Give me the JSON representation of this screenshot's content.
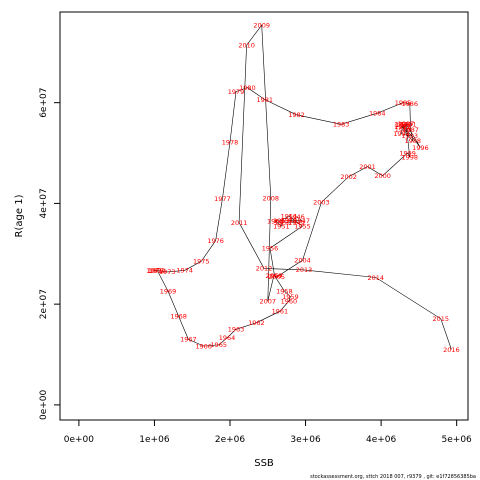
{
  "chart_data": {
    "type": "line",
    "title": "",
    "xlabel": "SSB",
    "ylabel": "R(age 1)",
    "xlim": [
      -250000,
      5150000
    ],
    "ylim": [
      -3000000,
      78000000
    ],
    "xticks": [
      0,
      1000000,
      2000000,
      3000000,
      4000000,
      5000000
    ],
    "xtick_labels": [
      "0e+00",
      "1e+06",
      "2e+06",
      "3e+06",
      "4e+06",
      "5e+06"
    ],
    "yticks": [
      0,
      20000000,
      40000000,
      60000000
    ],
    "ytick_labels": [
      "0e+00",
      "2e+07",
      "4e+07",
      "6e+07"
    ],
    "grid": false,
    "line_color": "#000000",
    "label_color": "#ff0000",
    "footer": "stockassessment.org, sttch  2018  007, r9379 , git: e1f72856385ba",
    "series": [
      {
        "points": [
          {
            "year": "1946",
            "x": 2880000,
            "y": 37400000
          },
          {
            "year": "1947",
            "x": 2950000,
            "y": 36600000
          },
          {
            "year": "1948",
            "x": 2780000,
            "y": 36700000
          },
          {
            "year": "1949",
            "x": 2880000,
            "y": 36200000
          },
          {
            "year": "1950",
            "x": 2700000,
            "y": 36300000
          },
          {
            "year": "1951",
            "x": 2680000,
            "y": 35500000
          },
          {
            "year": "1952",
            "x": 2600000,
            "y": 36500000
          },
          {
            "year": "1953",
            "x": 2680000,
            "y": 36600000
          },
          {
            "year": "1954",
            "x": 2780000,
            "y": 37500000
          },
          {
            "year": "1955",
            "x": 2960000,
            "y": 35500000
          },
          {
            "year": "1956",
            "x": 2530000,
            "y": 31100000
          },
          {
            "year": "1957",
            "x": 2590000,
            "y": 25600000
          },
          {
            "year": "1958",
            "x": 2720000,
            "y": 22600000
          },
          {
            "year": "1959",
            "x": 2800000,
            "y": 21500000
          },
          {
            "year": "1960",
            "x": 2780000,
            "y": 20600000
          },
          {
            "year": "1961",
            "x": 2660000,
            "y": 18600000
          },
          {
            "year": "1962",
            "x": 2350000,
            "y": 16300000
          },
          {
            "year": "1963",
            "x": 2080000,
            "y": 15000000
          },
          {
            "year": "1964",
            "x": 1960000,
            "y": 13300000
          },
          {
            "year": "1965",
            "x": 1850000,
            "y": 11900000
          },
          {
            "year": "1966",
            "x": 1650000,
            "y": 11700000
          },
          {
            "year": "1967",
            "x": 1450000,
            "y": 13000000
          },
          {
            "year": "1968",
            "x": 1320000,
            "y": 17600000
          },
          {
            "year": "1969",
            "x": 1180000,
            "y": 22600000
          },
          {
            "year": "1970",
            "x": 1040000,
            "y": 26600000
          },
          {
            "year": "1971",
            "x": 1000000,
            "y": 26600000
          },
          {
            "year": "1972",
            "x": 1020000,
            "y": 26700000
          },
          {
            "year": "1973",
            "x": 1170000,
            "y": 26400000
          },
          {
            "year": "1974",
            "x": 1400000,
            "y": 26700000
          },
          {
            "year": "1975",
            "x": 1620000,
            "y": 28500000
          },
          {
            "year": "1976",
            "x": 1810000,
            "y": 32600000
          },
          {
            "year": "1977",
            "x": 1900000,
            "y": 40900000
          },
          {
            "year": "1978",
            "x": 2000000,
            "y": 52200000
          },
          {
            "year": "1979",
            "x": 2080000,
            "y": 62200000
          },
          {
            "year": "1980",
            "x": 2230000,
            "y": 63000000
          },
          {
            "year": "1981",
            "x": 2460000,
            "y": 60600000
          },
          {
            "year": "1982",
            "x": 2880000,
            "y": 57600000
          },
          {
            "year": "1983",
            "x": 3470000,
            "y": 55700000
          },
          {
            "year": "1984",
            "x": 3950000,
            "y": 57900000
          },
          {
            "year": "1985",
            "x": 4290000,
            "y": 60000000
          },
          {
            "year": "1986",
            "x": 4380000,
            "y": 59800000
          },
          {
            "year": "1987",
            "x": 4390000,
            "y": 54600000
          },
          {
            "year": "1988",
            "x": 4420000,
            "y": 52400000
          },
          {
            "year": "1989",
            "x": 4290000,
            "y": 54600000
          },
          {
            "year": "1990",
            "x": 4300000,
            "y": 55600000
          },
          {
            "year": "1991",
            "x": 4360000,
            "y": 55700000
          },
          {
            "year": "1992",
            "x": 4280000,
            "y": 55200000
          },
          {
            "year": "1993",
            "x": 4380000,
            "y": 53400000
          },
          {
            "year": "1994",
            "x": 4270000,
            "y": 53800000
          },
          {
            "year": "1995",
            "x": 4280000,
            "y": 55700000
          },
          {
            "year": "1996",
            "x": 4520000,
            "y": 51100000
          },
          {
            "year": "1997",
            "x": 4330000,
            "y": 55800000
          },
          {
            "year": "1998",
            "x": 4380000,
            "y": 49200000
          },
          {
            "year": "1999",
            "x": 4350000,
            "y": 50000000
          },
          {
            "year": "2000",
            "x": 4020000,
            "y": 45500000
          },
          {
            "year": "2001",
            "x": 3820000,
            "y": 47300000
          },
          {
            "year": "2002",
            "x": 3570000,
            "y": 45300000
          },
          {
            "year": "2003",
            "x": 3210000,
            "y": 40200000
          },
          {
            "year": "2004",
            "x": 2960000,
            "y": 28700000
          },
          {
            "year": "2005",
            "x": 2620000,
            "y": 25400000
          },
          {
            "year": "2006",
            "x": 2580000,
            "y": 25600000
          },
          {
            "year": "2007",
            "x": 2500000,
            "y": 20600000
          },
          {
            "year": "2008",
            "x": 2540000,
            "y": 41000000
          },
          {
            "year": "2009",
            "x": 2420000,
            "y": 75400000
          },
          {
            "year": "2010",
            "x": 2220000,
            "y": 71400000
          },
          {
            "year": "2011",
            "x": 2120000,
            "y": 36200000
          },
          {
            "year": "2012",
            "x": 2450000,
            "y": 27100000
          },
          {
            "year": "2013",
            "x": 2980000,
            "y": 26800000
          },
          {
            "year": "2014",
            "x": 3930000,
            "y": 25300000
          },
          {
            "year": "2015",
            "x": 4790000,
            "y": 17100000
          },
          {
            "year": "2016",
            "x": 4930000,
            "y": 11000000
          }
        ]
      }
    ]
  }
}
